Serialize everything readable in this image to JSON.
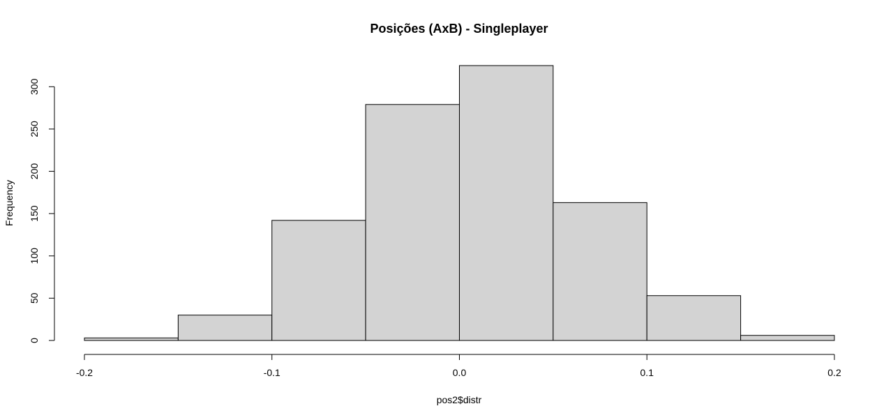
{
  "chart_data": {
    "type": "bar",
    "title": "Posições (AxB) - Singleplayer",
    "xlabel": "pos2$distr",
    "ylabel": "Frequency",
    "bin_edges": [
      -0.2,
      -0.15,
      -0.1,
      -0.05,
      0.0,
      0.05,
      0.1,
      0.15,
      0.2
    ],
    "values": [
      3,
      30,
      142,
      279,
      325,
      163,
      53,
      6
    ],
    "xlim": [
      -0.2,
      0.2
    ],
    "ylim": [
      0,
      325
    ],
    "xticks": [
      -0.2,
      -0.1,
      0.0,
      0.1,
      0.2
    ],
    "xtick_labels": [
      "-0.2",
      "-0.1",
      "0.0",
      "0.1",
      "0.2"
    ],
    "yticks": [
      0,
      50,
      100,
      150,
      200,
      250,
      300
    ],
    "ytick_labels": [
      "0",
      "50",
      "100",
      "150",
      "200",
      "250",
      "300"
    ],
    "grid": false,
    "colors": {
      "bar_fill": "#d3d3d3",
      "bar_stroke": "#000000"
    }
  }
}
